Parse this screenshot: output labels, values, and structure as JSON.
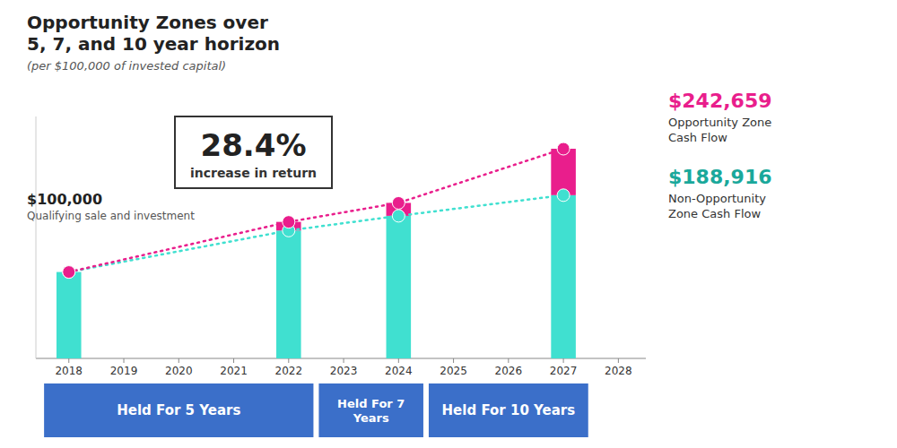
{
  "chart_data": {
    "type": "bar",
    "title": "Opportunity Zones over\n5, 7, and 10 year horizon",
    "subtitle": "(per $100,000 of invested capital)",
    "x": [
      2018,
      2022,
      2024,
      2027
    ],
    "xlim": [
      2017.4,
      2028.5
    ],
    "xticks": [
      2018,
      2019,
      2020,
      2021,
      2022,
      2023,
      2024,
      2025,
      2026,
      2027,
      2028
    ],
    "ylim": [
      0,
      280000
    ],
    "tick_labels": "x",
    "stacked": true,
    "grid": false,
    "series": [
      {
        "type": "bar",
        "color": "#40e0d0",
        "values": [
          100000,
          148000,
          165000,
          188916
        ]
      },
      {
        "type": "bar",
        "color": "#e91e8c",
        "values": [
          null,
          10000,
          15000,
          53743
        ]
      },
      {
        "type": "line",
        "color": "#40e0d0",
        "line_style": "dotted",
        "marker": "circle",
        "values": [
          100000,
          148000,
          165000,
          188916
        ]
      },
      {
        "type": "line",
        "color": "#e91e8c",
        "line_style": "dotted",
        "marker": "circle",
        "values": [
          100000,
          158000,
          180000,
          242659
        ]
      }
    ],
    "annotations": [
      "$100,000",
      "Qualifying sale and investment",
      "$242,659",
      "Opportunity Zone",
      "Cash Flow",
      "$188,916",
      "Non-Opportunity",
      "Zone Cash Flow",
      "28.4%",
      "increase in return",
      "Held For 5 Years",
      "Held For 7\nYears",
      "Held For 10 Years"
    ]
  }
}
